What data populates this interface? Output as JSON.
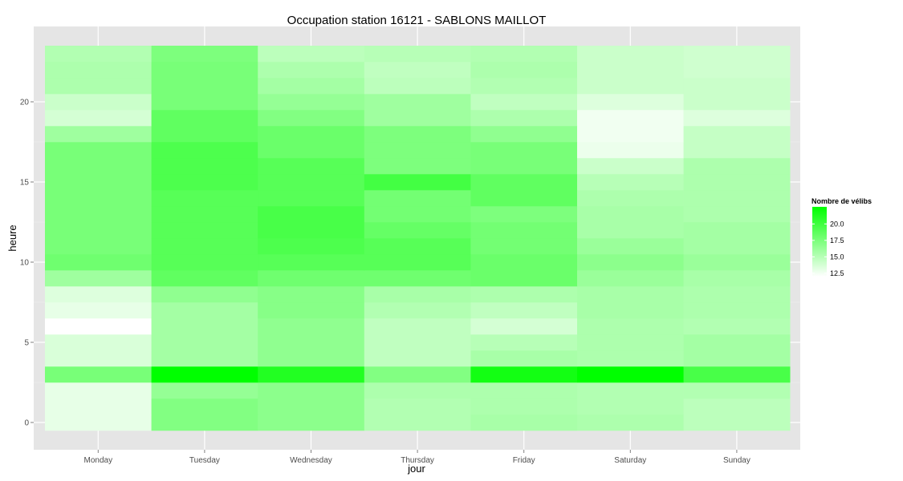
{
  "chart_data": {
    "type": "heatmap",
    "title": "Occupation station 16121 - SABLONS MAILLOT",
    "xlabel": "jour",
    "ylabel": "heure",
    "x": [
      "Monday",
      "Tuesday",
      "Wednesday",
      "Thursday",
      "Friday",
      "Saturday",
      "Sunday"
    ],
    "y": [
      0,
      1,
      2,
      3,
      4,
      5,
      6,
      7,
      8,
      9,
      10,
      11,
      12,
      13,
      14,
      15,
      16,
      17,
      18,
      19,
      20,
      21,
      22,
      23
    ],
    "yticks": [
      0,
      5,
      10,
      15,
      20
    ],
    "ylim": [
      -0.5,
      23.5
    ],
    "legend": {
      "title": "Nombre de vélibs",
      "ticks": [
        12.5,
        15.0,
        17.5,
        20.0
      ],
      "range": [
        12.0,
        22.6
      ],
      "low_color": "#ffffff",
      "high_color": "#00ff00",
      "position": "right"
    },
    "grid": true,
    "values": [
      [
        13.0,
        17.2,
        16.8,
        15.2,
        15.6,
        15.4,
        14.8
      ],
      [
        13.0,
        17.2,
        16.8,
        15.2,
        15.4,
        15.2,
        14.8
      ],
      [
        13.0,
        16.4,
        16.8,
        15.4,
        15.4,
        15.2,
        15.2
      ],
      [
        17.6,
        22.6,
        21.2,
        17.2,
        21.8,
        22.6,
        19.6
      ],
      [
        13.6,
        15.8,
        16.6,
        14.6,
        15.6,
        15.4,
        15.8
      ],
      [
        13.6,
        15.8,
        16.6,
        14.6,
        15.0,
        15.4,
        15.8
      ],
      [
        12.0,
        15.8,
        16.6,
        14.6,
        13.8,
        15.4,
        15.2
      ],
      [
        13.0,
        15.8,
        17.0,
        15.2,
        14.6,
        15.6,
        15.4
      ],
      [
        13.4,
        16.6,
        17.0,
        15.6,
        15.4,
        15.6,
        15.4
      ],
      [
        16.0,
        18.6,
        18.0,
        18.0,
        18.2,
        16.2,
        15.6
      ],
      [
        18.0,
        19.0,
        19.0,
        19.0,
        18.2,
        16.8,
        16.2
      ],
      [
        17.6,
        19.0,
        19.4,
        19.0,
        17.8,
        16.2,
        15.8
      ],
      [
        17.6,
        19.0,
        19.6,
        18.4,
        17.8,
        15.6,
        15.8
      ],
      [
        17.6,
        19.0,
        19.6,
        17.8,
        17.4,
        15.6,
        15.4
      ],
      [
        17.6,
        19.0,
        19.0,
        17.8,
        18.6,
        15.4,
        15.4
      ],
      [
        17.6,
        19.4,
        19.0,
        19.8,
        18.6,
        15.0,
        15.4
      ],
      [
        17.6,
        19.4,
        19.0,
        17.4,
        17.6,
        14.2,
        15.4
      ],
      [
        17.6,
        19.4,
        18.2,
        17.4,
        17.6,
        12.8,
        14.4
      ],
      [
        16.0,
        18.6,
        18.2,
        17.4,
        16.6,
        12.6,
        14.4
      ],
      [
        13.8,
        18.6,
        17.2,
        16.0,
        15.4,
        12.6,
        13.4
      ],
      [
        14.2,
        17.6,
        16.4,
        16.0,
        14.6,
        13.4,
        14.2
      ],
      [
        15.4,
        17.6,
        15.8,
        14.8,
        15.2,
        14.2,
        14.2
      ],
      [
        15.4,
        17.6,
        15.4,
        14.6,
        15.4,
        14.2,
        14.0
      ],
      [
        15.2,
        17.4,
        14.8,
        15.0,
        15.2,
        14.2,
        14.0
      ]
    ]
  }
}
